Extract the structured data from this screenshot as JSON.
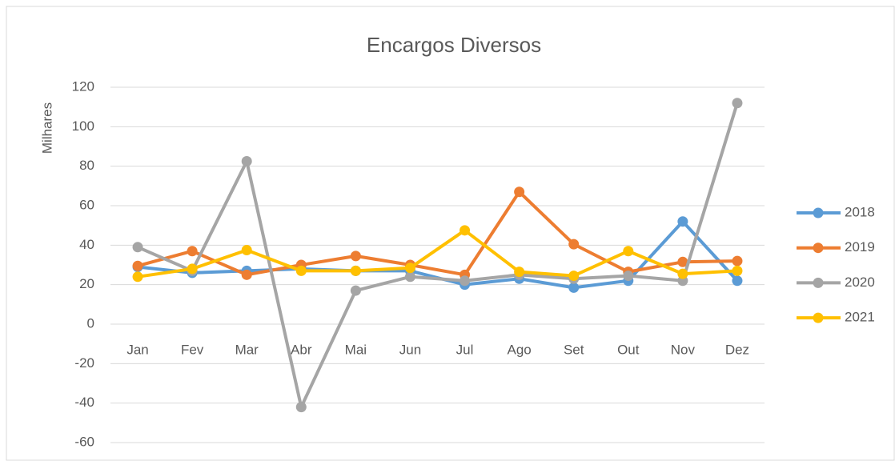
{
  "chart_data": {
    "type": "line",
    "title": "Encargos Diversos",
    "y_label": "Milhares",
    "categories": [
      "Jan",
      "Fev",
      "Mar",
      "Abr",
      "Mai",
      "Jun",
      "Jul",
      "Ago",
      "Set",
      "Out",
      "Nov",
      "Dez"
    ],
    "series": [
      {
        "name": "2018",
        "color": "#5b9bd5",
        "values": [
          29,
          26,
          27,
          28,
          27,
          27,
          20,
          23,
          18.5,
          22,
          52,
          22
        ]
      },
      {
        "name": "2019",
        "color": "#ed7d31",
        "values": [
          29.5,
          37,
          25,
          30,
          34.5,
          30,
          25,
          67,
          40.5,
          26.5,
          31.5,
          32
        ]
      },
      {
        "name": "2020",
        "color": "#a5a5a5",
        "values": [
          39,
          27,
          82.5,
          -42,
          17,
          24,
          22,
          25,
          23,
          24.5,
          22,
          112
        ]
      },
      {
        "name": "2021",
        "color": "#ffc000",
        "values": [
          24,
          28,
          37.5,
          27,
          27,
          28.5,
          47.5,
          26.5,
          24.5,
          37,
          25.5,
          27
        ]
      }
    ],
    "ylim": [
      -60,
      120
    ],
    "yticks": [
      -60,
      -40,
      -20,
      0,
      20,
      40,
      60,
      80,
      100,
      120
    ],
    "grid": true,
    "legend": "right"
  }
}
